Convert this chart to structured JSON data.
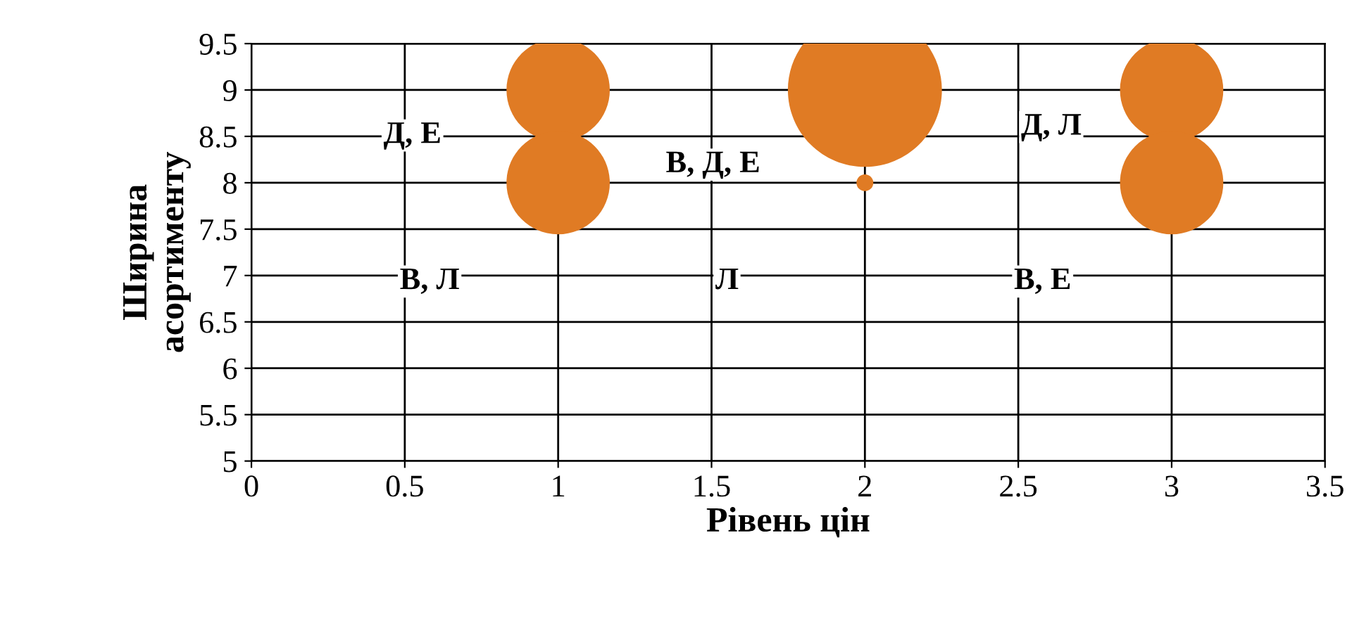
{
  "chart_data": {
    "type": "bubble",
    "xlabel": "Рівень цін",
    "ylabel": "Ширина\nасортименту",
    "x": [
      1,
      1,
      2,
      2,
      3,
      3
    ],
    "series": [
      {
        "color": "#e07b24",
        "values": [
          9,
          8,
          9,
          8,
          9,
          8
        ],
        "sizes": [
          0.45,
          0.45,
          1,
          0.012,
          0.45,
          0.45
        ]
      }
    ],
    "relative": false,
    "xlim": [
      0,
      3.5
    ],
    "xticks": [
      0,
      0.5,
      1,
      1.5,
      2,
      2.5,
      3,
      3.5
    ],
    "ylim": [
      5,
      9.5
    ],
    "yticks": [
      5,
      5.5,
      6,
      6.5,
      7,
      7.5,
      8,
      8.5,
      9,
      9.5
    ],
    "grid": true,
    "legend": false,
    "annotations": [
      "Д, Е",
      "В, Д, Е",
      "Д, Л",
      "В, Л",
      "Л",
      "В, Е"
    ]
  }
}
